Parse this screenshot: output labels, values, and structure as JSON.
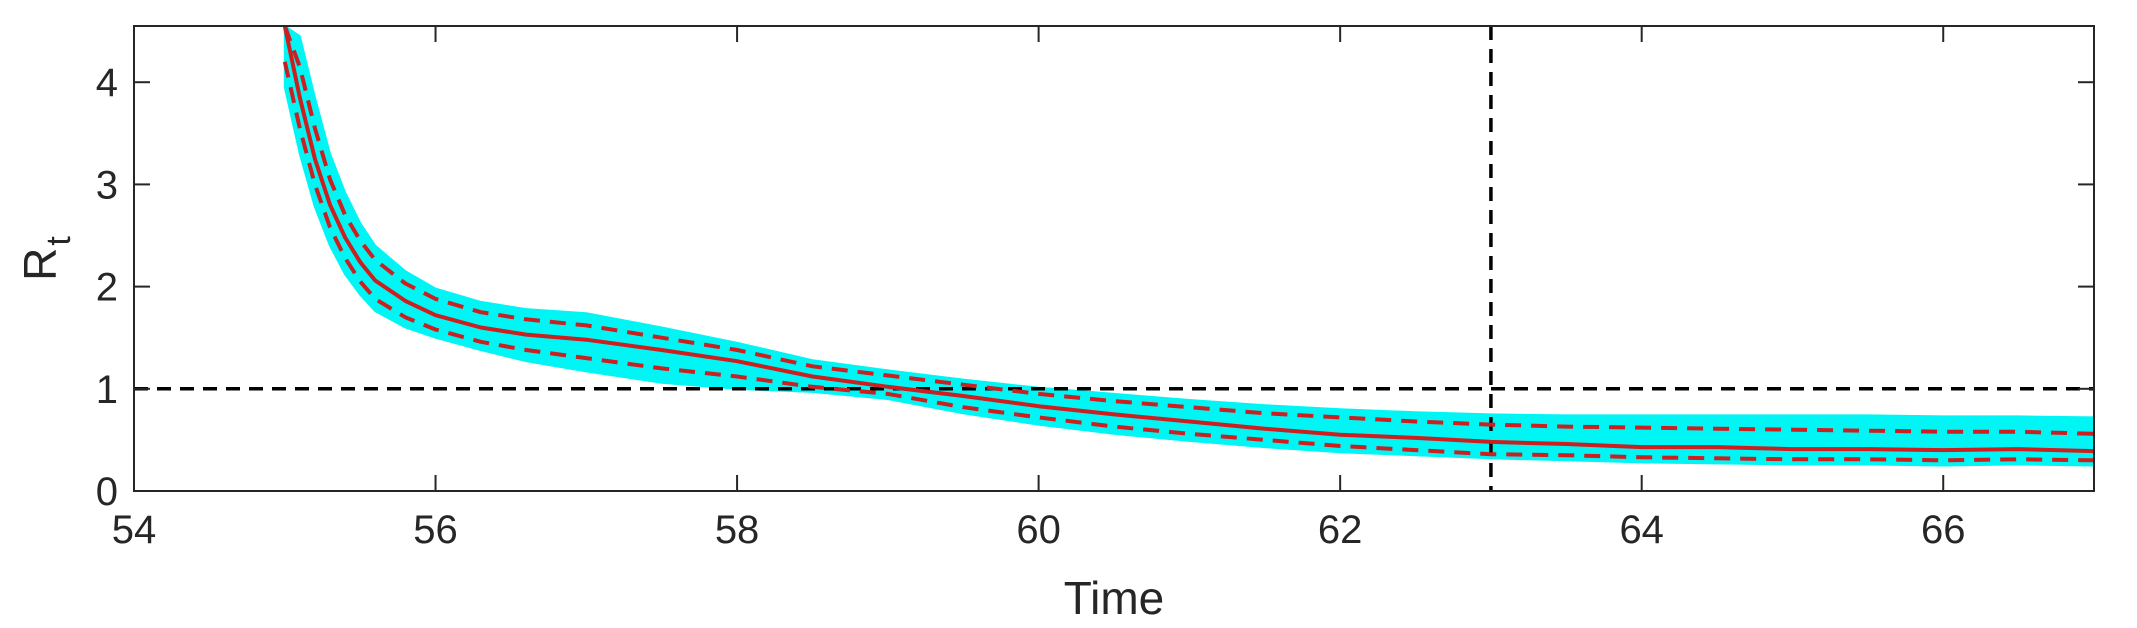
{
  "chart_data": {
    "type": "line",
    "title": "",
    "xlabel": "Time",
    "ylabel": "R",
    "ylabel_subscript": "t",
    "xlim": [
      54,
      67
    ],
    "ylim": [
      0,
      4.55
    ],
    "xticks": [
      54,
      56,
      58,
      60,
      62,
      64,
      66
    ],
    "yticks": [
      0,
      1,
      2,
      3,
      4
    ],
    "xtick_labels": [
      "54",
      "56",
      "58",
      "60",
      "62",
      "64",
      "66"
    ],
    "ytick_labels": [
      "0",
      "1",
      "2",
      "3",
      "4"
    ],
    "grid": false,
    "legend": "none",
    "reference_lines": [
      {
        "orientation": "horizontal",
        "value": 1,
        "style": "dashed",
        "color": "#000000"
      },
      {
        "orientation": "vertical",
        "value": 63,
        "style": "dashed",
        "color": "#000000"
      }
    ],
    "x": [
      55.0,
      55.1,
      55.2,
      55.3,
      55.4,
      55.5,
      55.6,
      55.8,
      56.0,
      56.3,
      56.6,
      57.0,
      57.5,
      58.0,
      58.5,
      59.0,
      59.5,
      60.0,
      60.5,
      61.0,
      61.5,
      62.0,
      62.5,
      63.0,
      63.5,
      64.0,
      64.5,
      65.0,
      65.5,
      66.0,
      66.5,
      67.0
    ],
    "series": [
      {
        "values": [
          4.55,
          3.85,
          3.25,
          2.8,
          2.48,
          2.24,
          2.06,
          1.86,
          1.72,
          1.6,
          1.53,
          1.48,
          1.38,
          1.27,
          1.12,
          1.02,
          0.93,
          0.83,
          0.75,
          0.68,
          0.61,
          0.55,
          0.52,
          0.48,
          0.46,
          0.43,
          0.43,
          0.41,
          0.41,
          0.4,
          0.41,
          0.39
        ],
        "color": "#cc1f1f",
        "style": "solid"
      },
      {
        "values": [
          4.55,
          4.15,
          3.55,
          3.05,
          2.7,
          2.45,
          2.26,
          2.03,
          1.88,
          1.75,
          1.68,
          1.62,
          1.5,
          1.38,
          1.22,
          1.13,
          1.04,
          0.95,
          0.88,
          0.82,
          0.76,
          0.72,
          0.68,
          0.65,
          0.63,
          0.62,
          0.61,
          0.6,
          0.59,
          0.58,
          0.58,
          0.56
        ],
        "color": "#cc1f1f",
        "style": "dashed"
      },
      {
        "values": [
          4.2,
          3.55,
          3.0,
          2.58,
          2.28,
          2.05,
          1.88,
          1.7,
          1.58,
          1.46,
          1.38,
          1.3,
          1.2,
          1.12,
          1.02,
          0.95,
          0.82,
          0.72,
          0.63,
          0.56,
          0.5,
          0.44,
          0.4,
          0.36,
          0.35,
          0.33,
          0.32,
          0.31,
          0.31,
          0.3,
          0.31,
          0.3
        ],
        "color": "#cc1f1f",
        "style": "dashed"
      }
    ],
    "band": {
      "color": "#00f5f5",
      "upper": [
        4.55,
        4.45,
        3.85,
        3.3,
        2.92,
        2.62,
        2.4,
        2.15,
        1.98,
        1.85,
        1.78,
        1.74,
        1.6,
        1.45,
        1.28,
        1.18,
        1.09,
        1.01,
        0.95,
        0.89,
        0.84,
        0.8,
        0.77,
        0.75,
        0.74,
        0.74,
        0.74,
        0.74,
        0.74,
        0.73,
        0.73,
        0.72
      ],
      "lower": [
        3.95,
        3.3,
        2.78,
        2.4,
        2.12,
        1.92,
        1.76,
        1.6,
        1.5,
        1.38,
        1.27,
        1.17,
        1.06,
        1.0,
        0.97,
        0.9,
        0.76,
        0.65,
        0.56,
        0.49,
        0.43,
        0.38,
        0.35,
        0.32,
        0.3,
        0.28,
        0.27,
        0.26,
        0.26,
        0.25,
        0.26,
        0.25
      ]
    }
  }
}
